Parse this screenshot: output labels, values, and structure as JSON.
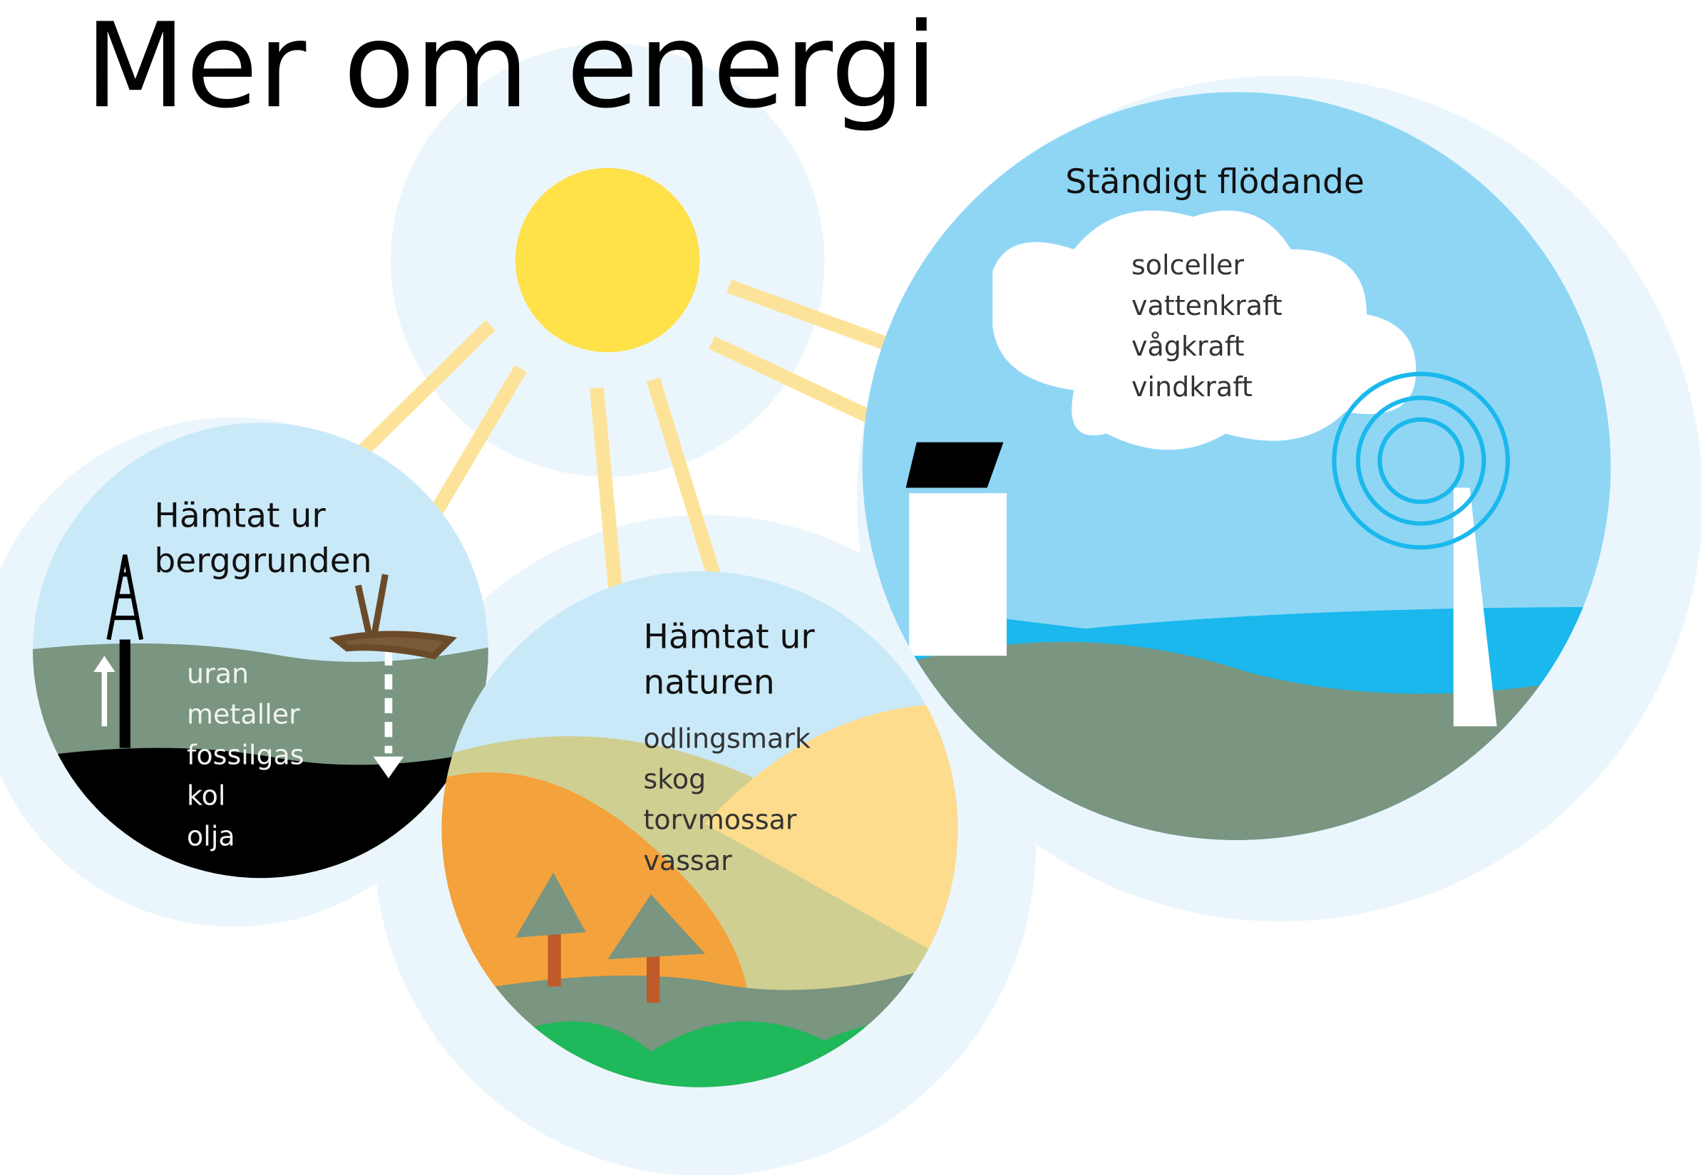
{
  "title": "Mer om energi",
  "groups": [
    {
      "heading_lines": [
        "Hämtat ur",
        "berggrunden"
      ],
      "items": [
        "uran",
        "metaller",
        "fossilgas",
        "kol",
        "olja"
      ]
    },
    {
      "heading_lines": [
        "Hämtat ur",
        "naturen"
      ],
      "items": [
        "odlingsmark",
        "skog",
        "torvmossar",
        "vassar"
      ]
    },
    {
      "heading_lines": [
        "Ständigt flödande"
      ],
      "items": [
        "solceller",
        "vattenkraft",
        "vågkraft",
        "vindkraft"
      ]
    }
  ]
}
